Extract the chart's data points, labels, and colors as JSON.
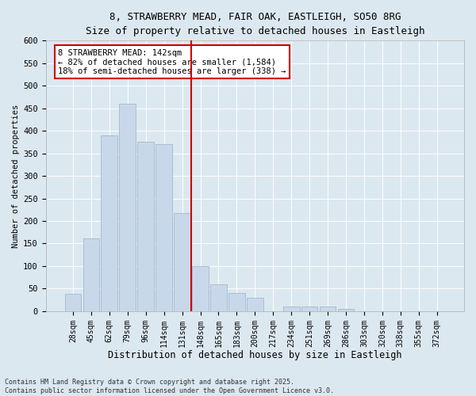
{
  "title_line1": "8, STRAWBERRY MEAD, FAIR OAK, EASTLEIGH, SO50 8RG",
  "title_line2": "Size of property relative to detached houses in Eastleigh",
  "xlabel": "Distribution of detached houses by size in Eastleigh",
  "ylabel": "Number of detached properties",
  "bar_color": "#c8d8ea",
  "bar_edgecolor": "#9ab0c8",
  "vline_color": "#cc0000",
  "background_color": "#dce8f0",
  "fig_background": "#dce8f0",
  "grid_color": "#ffffff",
  "categories": [
    "28sqm",
    "45sqm",
    "62sqm",
    "79sqm",
    "96sqm",
    "114sqm",
    "131sqm",
    "148sqm",
    "165sqm",
    "183sqm",
    "200sqm",
    "217sqm",
    "234sqm",
    "251sqm",
    "269sqm",
    "286sqm",
    "303sqm",
    "320sqm",
    "338sqm",
    "355sqm",
    "372sqm"
  ],
  "values": [
    38,
    162,
    390,
    460,
    375,
    370,
    218,
    100,
    60,
    40,
    30,
    0,
    10,
    10,
    10,
    5,
    0,
    0,
    0,
    0,
    0
  ],
  "ylim": [
    0,
    600
  ],
  "yticks": [
    0,
    50,
    100,
    150,
    200,
    250,
    300,
    350,
    400,
    450,
    500,
    550,
    600
  ],
  "annotation_title": "8 STRAWBERRY MEAD: 142sqm",
  "annotation_line1": "← 82% of detached houses are smaller (1,584)",
  "annotation_line2": "18% of semi-detached houses are larger (338) →",
  "annotation_box_facecolor": "#ffffff",
  "annotation_box_edgecolor": "#cc0000",
  "footer_line1": "Contains HM Land Registry data © Crown copyright and database right 2025.",
  "footer_line2": "Contains public sector information licensed under the Open Government Licence v3.0."
}
